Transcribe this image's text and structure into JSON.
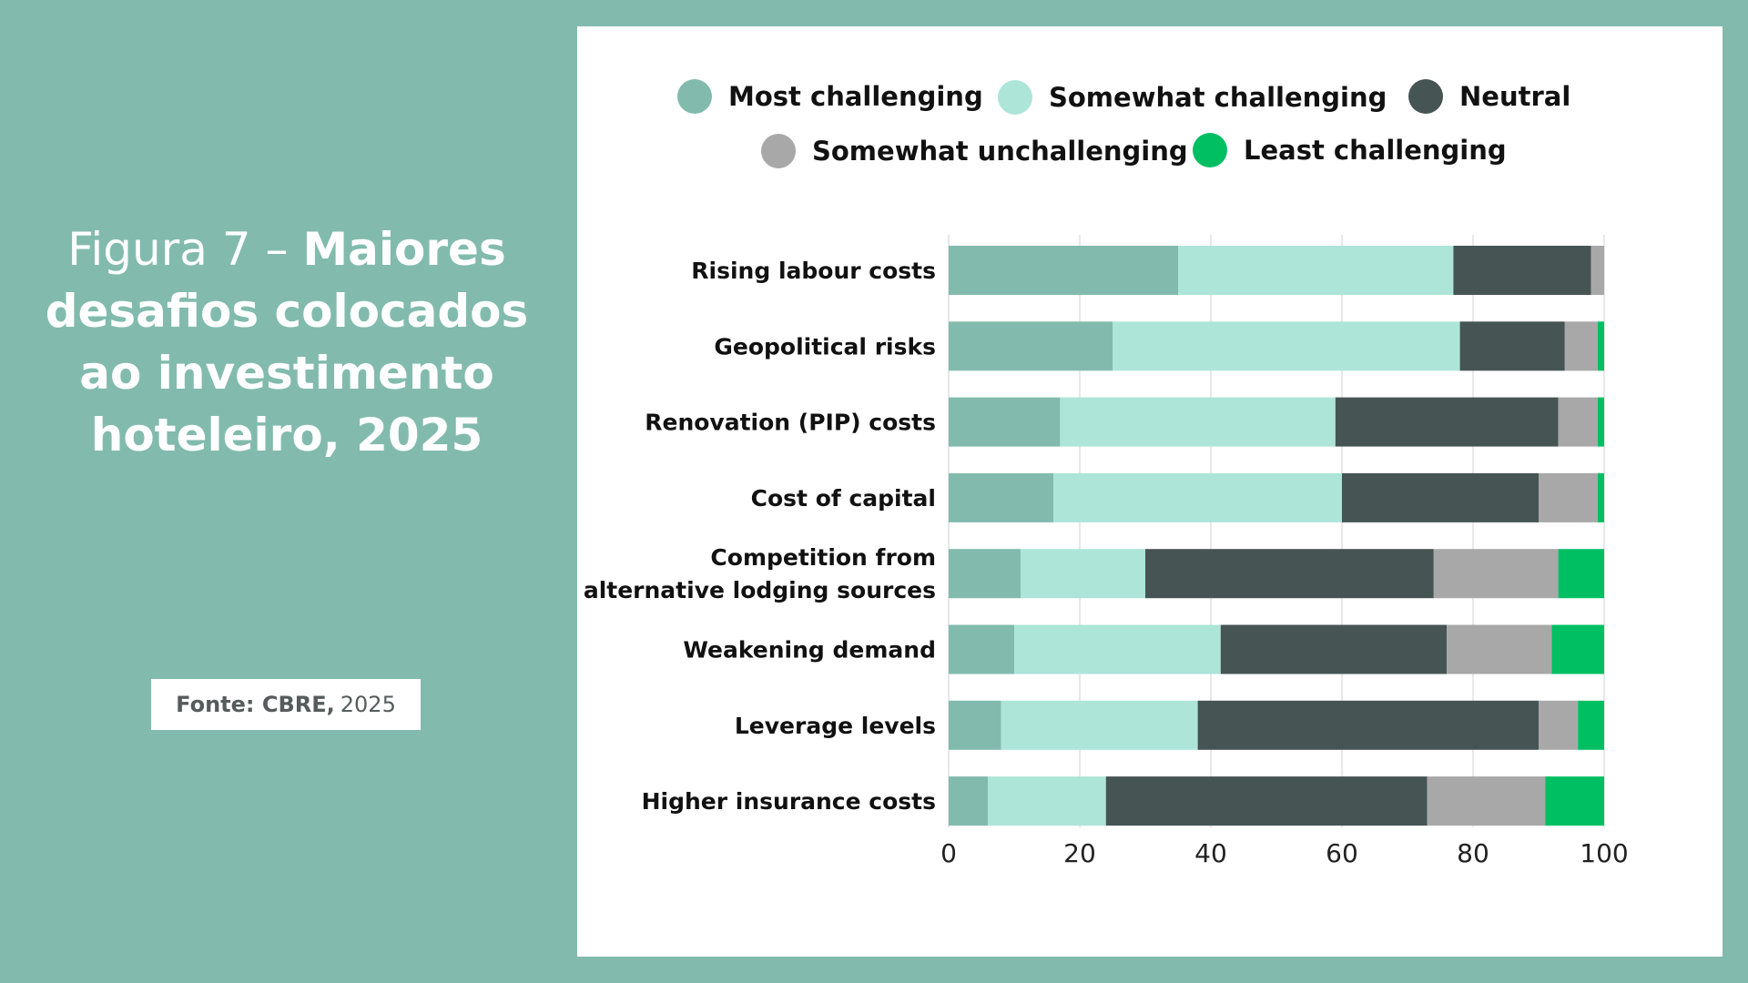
{
  "figure": {
    "title_prefix": "Figura 7 – ",
    "title_bold": "Maiores desafios colocados ao investimento hoteleiro, 2025",
    "source_label": "Fonte: CBRE,",
    "source_year": "2025"
  },
  "chart_data": {
    "type": "bar",
    "orientation": "horizontal",
    "stacked": true,
    "title": "",
    "xlabel": "",
    "ylabel": "",
    "xlim": [
      0,
      100
    ],
    "x_ticks": [
      "0",
      "20",
      "40",
      "60",
      "80",
      "100"
    ],
    "grid": true,
    "legend_position": "top",
    "categories": [
      [
        "Rising labour costs"
      ],
      [
        "Geopolitical risks"
      ],
      [
        "Renovation (PIP) costs"
      ],
      [
        "Cost of capital"
      ],
      [
        "Competition from",
        "alternative lodging sources"
      ],
      [
        "Weakening demand"
      ],
      [
        "Leverage levels"
      ],
      [
        "Higher insurance costs"
      ]
    ],
    "series": [
      {
        "name": "Most challenging",
        "color": "#82bbad",
        "values": [
          35,
          25,
          17,
          16,
          11,
          10,
          8,
          6
        ]
      },
      {
        "name": "Somewhat challenging",
        "color": "#ade5d8",
        "values": [
          42,
          53,
          42,
          44,
          19,
          31.5,
          30,
          18
        ]
      },
      {
        "name": "Neutral",
        "color": "#465454",
        "values": [
          21,
          16,
          34,
          30,
          44,
          34.5,
          52,
          49
        ]
      },
      {
        "name": "Somewhat unchallenging",
        "color": "#a8a8a8",
        "values": [
          2,
          5,
          6,
          9,
          19,
          16,
          6,
          18
        ]
      },
      {
        "name": "Least challenging",
        "color": "#00bf63",
        "values": [
          0,
          1,
          1,
          1,
          7,
          8,
          4,
          9
        ]
      }
    ]
  }
}
